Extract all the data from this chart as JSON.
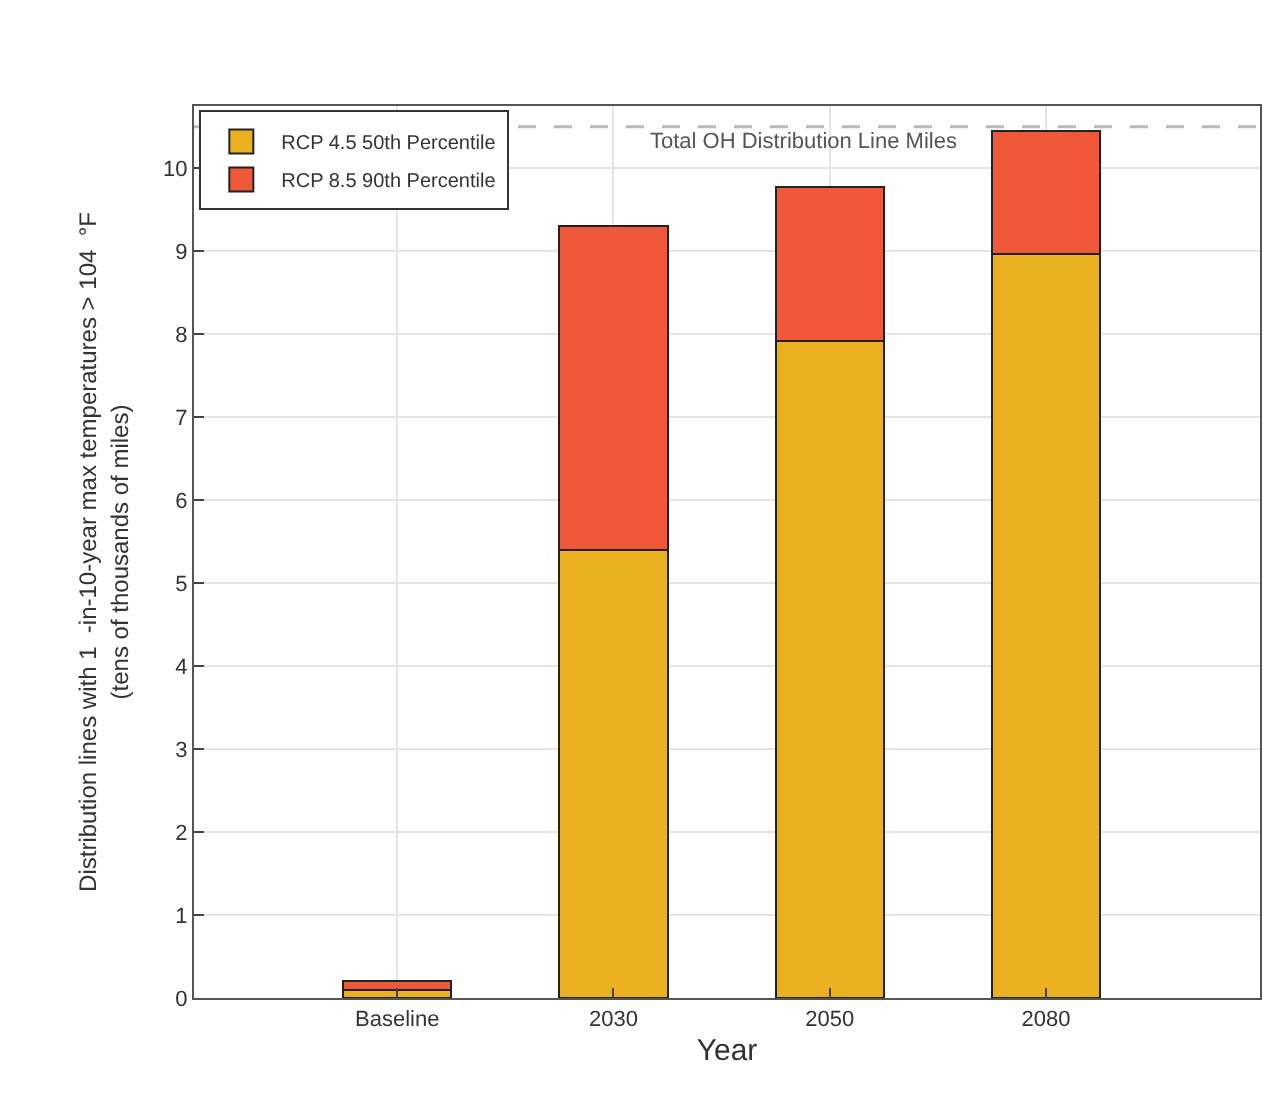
{
  "chart_data": {
    "type": "bar",
    "stacked": true,
    "xlabel": "Year",
    "ylabel": "Distribution lines with 1  -in-10-year max temperatures > 104  °F\n(tens of thousands of miles)",
    "categories": [
      "Baseline",
      "2030",
      "2050",
      "2080"
    ],
    "series": [
      {
        "name": "RCP 4.5 50th Percentile",
        "color": "#ebb01f",
        "values": [
          0.1,
          5.4,
          7.92,
          8.97
        ]
      },
      {
        "name": "RCP 8.5 90th Percentile",
        "color": "#f0583a",
        "values": [
          0.1,
          3.9,
          1.85,
          1.48
        ]
      }
    ],
    "ylim": [
      0,
      10.75
    ],
    "yticks": [
      0,
      1,
      2,
      3,
      4,
      5,
      6,
      7,
      8,
      9,
      10
    ],
    "grid": true,
    "legend": "top left",
    "ref_lines": [
      {
        "axis": "y",
        "value": 10.5,
        "label": "Total OH Distribution Line Miles",
        "color": "#bbbbbb",
        "line_style": "dashed"
      }
    ]
  }
}
